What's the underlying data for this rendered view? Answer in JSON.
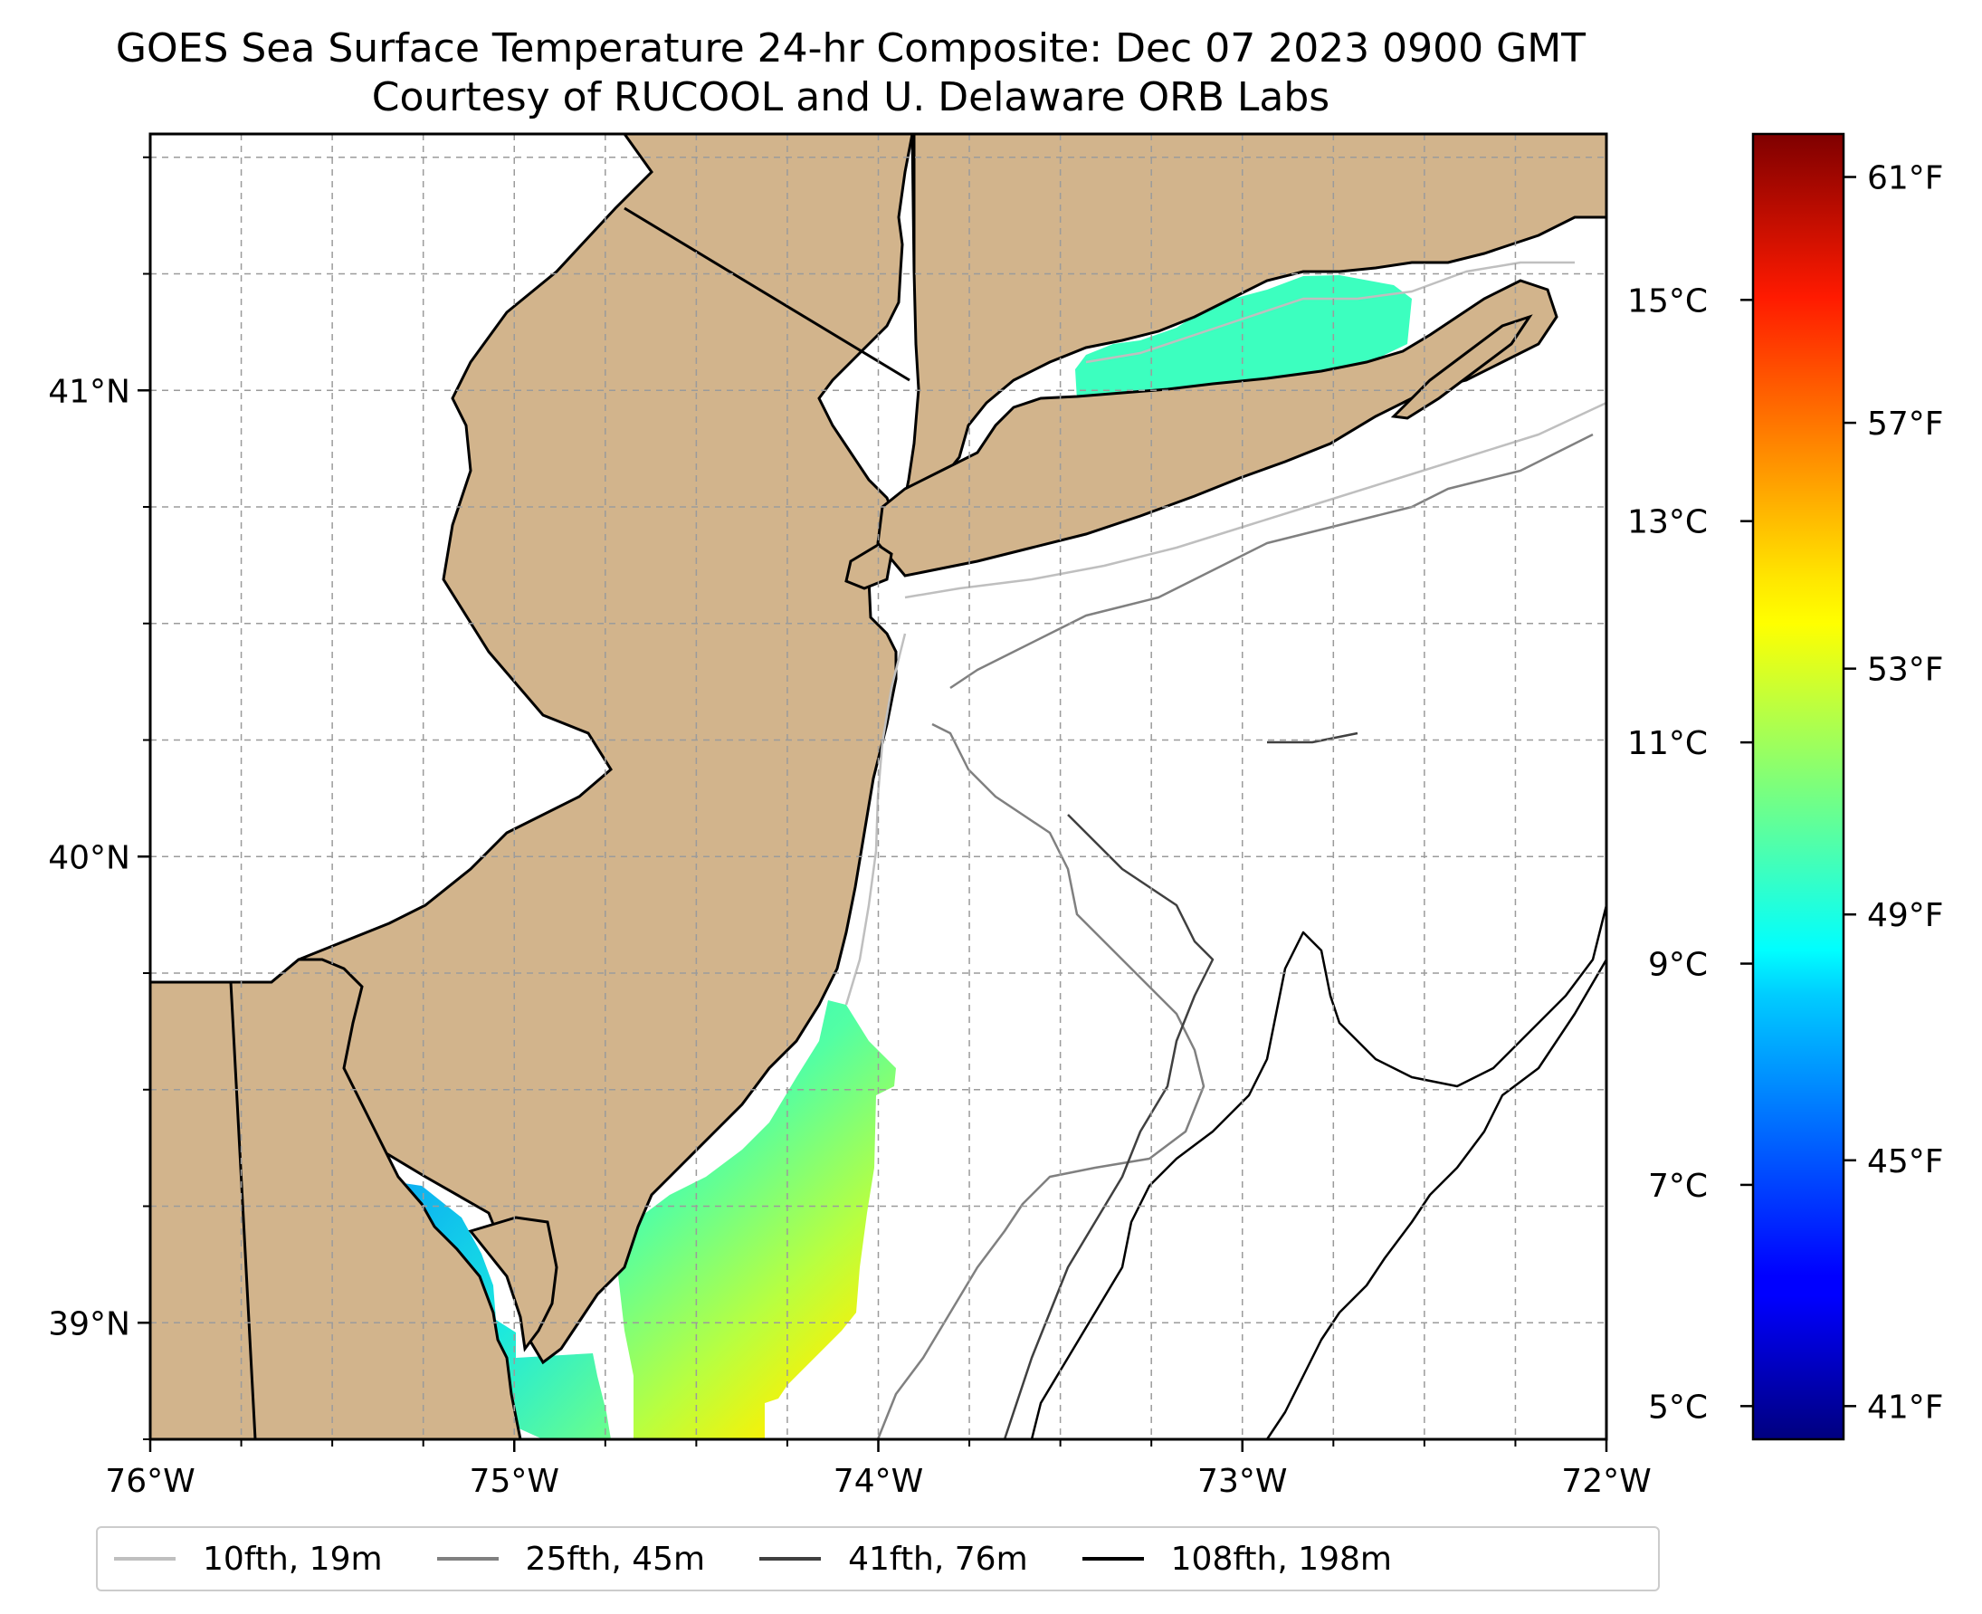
{
  "title": {
    "line1": "GOES Sea Surface Temperature 24-hr Composite: Dec 07 2023 0900 GMT",
    "line2": "Courtesy of RUCOOL and U. Delaware ORB Labs"
  },
  "map": {
    "lon_range": [
      -76,
      -72
    ],
    "lat_range": [
      38.75,
      41.55
    ],
    "land_color": "#d2b48c",
    "ocean_color": "#ffffff",
    "lon_ticks": [
      {
        "value": -76,
        "label": "76°W"
      },
      {
        "value": -75,
        "label": "75°W"
      },
      {
        "value": -74,
        "label": "74°W"
      },
      {
        "value": -73,
        "label": "73°W"
      },
      {
        "value": -72,
        "label": "72°W"
      }
    ],
    "lat_ticks": [
      {
        "value": 39,
        "label": "39°N"
      },
      {
        "value": 40,
        "label": "40°N"
      },
      {
        "value": 41,
        "label": "41°N"
      }
    ],
    "gridlines": true
  },
  "colorbar": {
    "colormap": "jet",
    "celsius_range": [
      4.7,
      16.5
    ],
    "celsius_ticks": [
      {
        "value": 5,
        "label": "5°C"
      },
      {
        "value": 7,
        "label": "7°C"
      },
      {
        "value": 9,
        "label": "9°C"
      },
      {
        "value": 11,
        "label": "11°C"
      },
      {
        "value": 13,
        "label": "13°C"
      },
      {
        "value": 15,
        "label": "15°C"
      }
    ],
    "fahrenheit_ticks": [
      {
        "value": 41,
        "label": "41°F"
      },
      {
        "value": 45,
        "label": "45°F"
      },
      {
        "value": 49,
        "label": "49°F"
      },
      {
        "value": 53,
        "label": "53°F"
      },
      {
        "value": 57,
        "label": "57°F"
      },
      {
        "value": 61,
        "label": "61°F"
      }
    ]
  },
  "legend": {
    "placement": "bottom-center",
    "items": [
      {
        "label": "10fth, 19m",
        "color": "#bfbfbf"
      },
      {
        "label": "25fth, 45m",
        "color": "#808080"
      },
      {
        "label": "41fth, 76m",
        "color": "#404040"
      },
      {
        "label": "108fth, 198m",
        "color": "#000000"
      }
    ]
  }
}
